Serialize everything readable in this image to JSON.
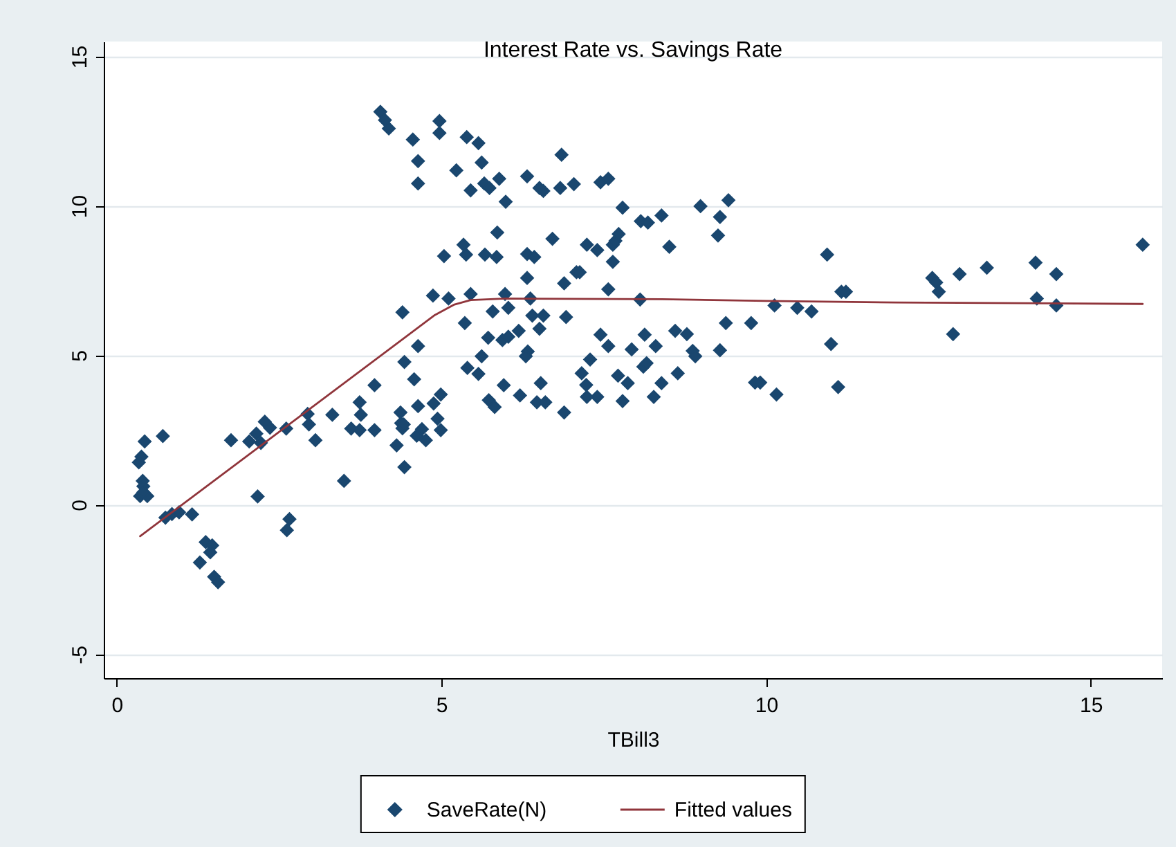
{
  "chart_data": {
    "type": "scatter",
    "title": "Interest Rate vs. Savings Rate",
    "xlabel": "TBill3",
    "xlim": [
      -0.2,
      16.1
    ],
    "ylim": [
      -5.8,
      15.5
    ],
    "xticks": [
      0,
      5,
      10,
      15
    ],
    "yticks": [
      -5,
      0,
      5,
      10,
      15
    ],
    "grid": "y",
    "legend": "bottom",
    "marker": "diamond",
    "series": [
      {
        "name": "SaveRate(N)",
        "color": "#1a476f",
        "x": [
          0.43,
          0.71,
          0.38,
          0.34,
          0.4,
          0.41,
          0.36,
          0.47,
          0.41,
          0.75,
          0.85,
          0.96,
          1.16,
          1.37,
          1.47,
          1.44,
          1.28,
          1.5,
          1.56,
          1.76,
          2.04,
          2.15,
          2.22,
          2.28,
          2.36,
          2.17,
          2.61,
          2.66,
          2.62,
          2.94,
          2.96,
          3.06,
          3.32,
          3.5,
          3.61,
          3.74,
          3.76,
          3.74,
          3.97,
          3.97,
          4.31,
          4.43,
          4.37,
          4.38,
          4.4,
          4.43,
          4.58,
          4.64,
          4.64,
          4.62,
          4.7,
          4.76,
          4.88,
          4.94,
          4.99,
          4.99,
          4.06,
          4.13,
          4.19,
          4.97,
          4.97,
          4.56,
          4.64,
          4.64,
          5.39,
          5.57,
          5.62,
          5.23,
          5.45,
          5.66,
          5.74,
          5.89,
          5.99,
          6.32,
          6.51,
          6.57,
          6.83,
          6.85,
          7.04,
          7.45,
          7.57,
          7.79,
          8.07,
          8.18,
          8.39,
          5.86,
          5.34,
          5.38,
          5.04,
          5.67,
          5.85,
          6.32,
          6.43,
          6.71,
          7.24,
          7.4,
          7.64,
          7.68,
          7.73,
          7.64,
          7.08,
          7.13,
          6.32,
          6.89,
          7.57,
          4.87,
          5.11,
          5.45,
          5.98,
          6.37,
          8.06,
          4.4,
          5.79,
          6.03,
          5.36,
          6.4,
          6.57,
          6.51,
          6.92,
          5.72,
          5.94,
          6.03,
          6.19,
          7.45,
          7.57,
          7.93,
          8.13,
          8.3,
          6.33,
          5.62,
          7.29,
          5.4,
          5.57,
          6.3,
          8.11,
          8.16,
          8.39,
          7.16,
          7.23,
          7.24,
          7.4,
          7.72,
          7.87,
          7.79,
          8.27,
          6.53,
          6.21,
          5.96,
          5.73,
          5.82,
          6.47,
          6.6,
          6.89,
          4.42,
          8.99,
          9.42,
          9.29,
          9.26,
          8.51,
          8.6,
          8.78,
          8.87,
          8.91,
          9.29,
          9.38,
          9.77,
          10.13,
          10.48,
          10.7,
          10.94,
          11.16,
          11.23,
          11.0,
          8.64,
          9.83,
          9.91,
          11.11,
          10.16,
          12.56,
          12.62,
          12.66,
          12.98,
          13.4,
          14.15,
          14.47,
          14.17,
          14.47,
          12.88,
          15.8
        ],
        "values": [
          2.12,
          2.3,
          1.61,
          1.42,
          0.8,
          0.62,
          0.29,
          0.29,
          0.42,
          -0.43,
          -0.31,
          -0.25,
          -0.32,
          -1.25,
          -1.36,
          -1.59,
          -1.93,
          -2.41,
          -2.59,
          2.16,
          2.12,
          2.38,
          2.07,
          2.78,
          2.58,
          0.28,
          2.55,
          -0.48,
          -0.85,
          3.04,
          2.69,
          2.16,
          3.01,
          0.8,
          2.55,
          3.43,
          3.01,
          2.5,
          4.0,
          2.5,
          1.99,
          1.26,
          3.09,
          2.73,
          2.56,
          4.78,
          4.2,
          5.31,
          3.3,
          2.31,
          2.53,
          2.16,
          3.39,
          2.88,
          3.69,
          2.5,
          13.15,
          12.87,
          12.59,
          12.84,
          12.44,
          12.22,
          11.5,
          10.75,
          12.3,
          12.1,
          11.45,
          11.19,
          10.52,
          10.75,
          10.6,
          10.91,
          10.14,
          10.99,
          10.6,
          10.5,
          10.6,
          11.71,
          10.73,
          10.79,
          10.91,
          9.94,
          9.49,
          9.44,
          9.68,
          9.11,
          8.7,
          8.37,
          8.32,
          8.37,
          8.29,
          8.39,
          8.29,
          8.9,
          8.7,
          8.52,
          8.7,
          8.83,
          9.06,
          8.13,
          7.78,
          7.78,
          7.59,
          7.41,
          7.21,
          7.0,
          6.9,
          7.05,
          7.05,
          6.9,
          6.87,
          6.44,
          6.47,
          6.59,
          6.08,
          6.33,
          6.33,
          5.89,
          6.28,
          5.59,
          5.51,
          5.62,
          5.82,
          5.69,
          5.31,
          5.2,
          5.69,
          5.31,
          5.13,
          4.97,
          4.86,
          4.58,
          4.38,
          4.97,
          4.62,
          4.74,
          4.07,
          4.4,
          4.01,
          3.61,
          3.61,
          4.32,
          4.07,
          3.47,
          3.61,
          4.07,
          3.66,
          4.0,
          3.5,
          3.27,
          3.43,
          3.43,
          3.09,
          2.69,
          9.99,
          10.19,
          9.63,
          9.01,
          8.63,
          5.82,
          5.71,
          5.15,
          4.97,
          5.17,
          6.08,
          6.08,
          6.67,
          6.59,
          6.47,
          8.37,
          7.13,
          7.13,
          5.38,
          4.4,
          4.09,
          4.09,
          3.94,
          3.69,
          7.59,
          7.44,
          7.13,
          7.72,
          7.93,
          8.1,
          7.72,
          6.9,
          6.67,
          5.71,
          8.7
        ]
      },
      {
        "name": "Fitted values",
        "type": "line",
        "color": "#90353b",
        "marker": "none",
        "line_style": "solid",
        "x": [
          0.36,
          4.9,
          5.2,
          5.45,
          6.0,
          8.4,
          10.0,
          12.0,
          15.8
        ],
        "values": [
          -1.05,
          6.35,
          6.7,
          6.85,
          6.9,
          6.88,
          6.82,
          6.77,
          6.72
        ]
      }
    ]
  }
}
